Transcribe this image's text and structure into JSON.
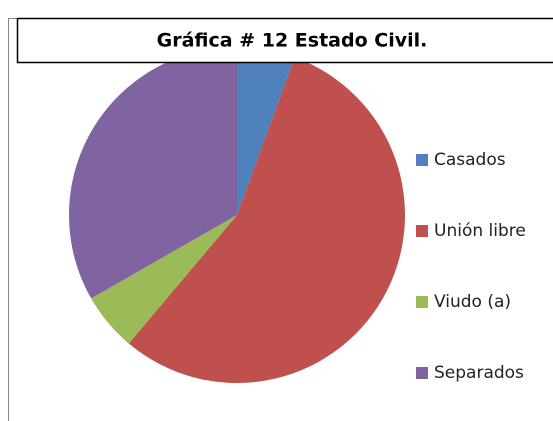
{
  "chart_data": {
    "type": "pie",
    "title": "Gráfica # 12 Estado Civil.",
    "categories": [
      "Casados",
      "Unión libre",
      "Viudo (a)",
      "Separados"
    ],
    "values": [
      5.6,
      55.6,
      5.6,
      33.3
    ],
    "colors": [
      "#4f81bd",
      "#c0504d",
      "#9bbb59",
      "#8064a2"
    ],
    "legend": "right"
  }
}
